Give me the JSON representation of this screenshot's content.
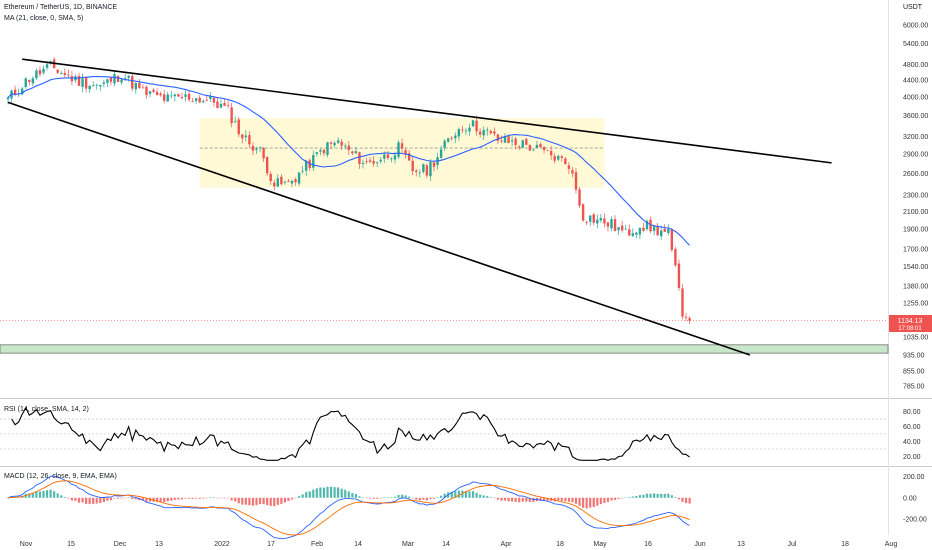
{
  "header": {
    "title": "Ethereum / TetherUS, 1D, BINANCE",
    "ma_label": "MA (21, close, 0, SMA, 5)",
    "currency": "USDT"
  },
  "price_badge": {
    "value": "1134.13",
    "countdown": "17:08:01",
    "color": "#ef5350"
  },
  "rsi_label": "RSI (14, close, SMA, 14, 2)",
  "macd_label": "MACD (12, 26, close, 9, EMA, EMA)",
  "colors": {
    "up": "#26a69a",
    "down": "#ef5350",
    "ma": "#2962ff",
    "trendline": "#000000",
    "box_fill": "#fff9d6",
    "support_zone": "#c8e6c9",
    "macd_line": "#2962ff",
    "signal_line": "#ff6d00"
  },
  "chart_data": {
    "type": "candlestick",
    "x_tick_labels": [
      "Nov",
      "15",
      "Dec",
      "13",
      "2022",
      "17",
      "Feb",
      "14",
      "Mar",
      "14",
      "Apr",
      "18",
      "May",
      "16",
      "Jun",
      "13",
      "Jul",
      "18",
      "Aug"
    ],
    "price_axis": {
      "scale": "log",
      "tick_labels": [
        "6000.00",
        "5400.00",
        "4800.00",
        "4400.00",
        "4000.00",
        "3600.00",
        "3200.00",
        "2900.00",
        "2600.00",
        "2300.00",
        "2100.00",
        "1900.00",
        "1700.00",
        "1540.00",
        "1380.00",
        "1255.00",
        "1035.00",
        "935.00",
        "855.00",
        "785.00"
      ],
      "last_price": 1134.13
    },
    "close_anchors": [
      [
        0,
        3950
      ],
      [
        6,
        4450
      ],
      [
        12,
        4750
      ],
      [
        19,
        4400
      ],
      [
        26,
        4250
      ],
      [
        32,
        4550
      ],
      [
        38,
        4100
      ],
      [
        45,
        3950
      ],
      [
        51,
        4000
      ],
      [
        58,
        3900
      ],
      [
        62,
        3700
      ],
      [
        66,
        3200
      ],
      [
        71,
        2950
      ],
      [
        75,
        2450
      ],
      [
        79,
        2450
      ],
      [
        84,
        2700
      ],
      [
        89,
        3000
      ],
      [
        93,
        3100
      ],
      [
        97,
        2900
      ],
      [
        101,
        2750
      ],
      [
        106,
        2850
      ],
      [
        110,
        3000
      ],
      [
        114,
        2650
      ],
      [
        118,
        2650
      ],
      [
        122,
        2950
      ],
      [
        126,
        3300
      ],
      [
        130,
        3450
      ],
      [
        134,
        3300
      ],
      [
        138,
        3150
      ],
      [
        142,
        3100
      ],
      [
        146,
        3050
      ],
      [
        150,
        2950
      ],
      [
        154,
        2850
      ],
      [
        158,
        2750
      ],
      [
        162,
        2050
      ],
      [
        166,
        2000
      ],
      [
        170,
        1950
      ],
      [
        174,
        1850
      ],
      [
        178,
        1950
      ],
      [
        182,
        1900
      ],
      [
        186,
        1850
      ],
      [
        188,
        1500
      ],
      [
        190,
        1200
      ],
      [
        192,
        1134
      ]
    ],
    "ma": {
      "name": "MA (21, close, 0, SMA, 5)"
    },
    "annotations": {
      "upper_trendline": [
        [
          4,
          4950
        ],
        [
          232,
          2760
        ]
      ],
      "lower_trendline": [
        [
          0,
          3880
        ],
        [
          209,
          935
        ]
      ],
      "range_box": {
        "x": [
          54,
          168
        ],
        "price_top": 3550,
        "price_bottom": 2400,
        "mid_price": 3000
      },
      "support_zone": {
        "price_top": 990,
        "price_bottom": 945
      }
    },
    "rsi": {
      "tick_labels": [
        "80.00",
        "60.00",
        "40.00",
        "20.00"
      ],
      "levels": [
        70,
        50,
        30
      ],
      "ylim": [
        10,
        90
      ]
    },
    "macd": {
      "tick_labels": [
        "200.00",
        "0.00",
        "-200.00"
      ],
      "ylim": [
        -330,
        260
      ]
    }
  }
}
